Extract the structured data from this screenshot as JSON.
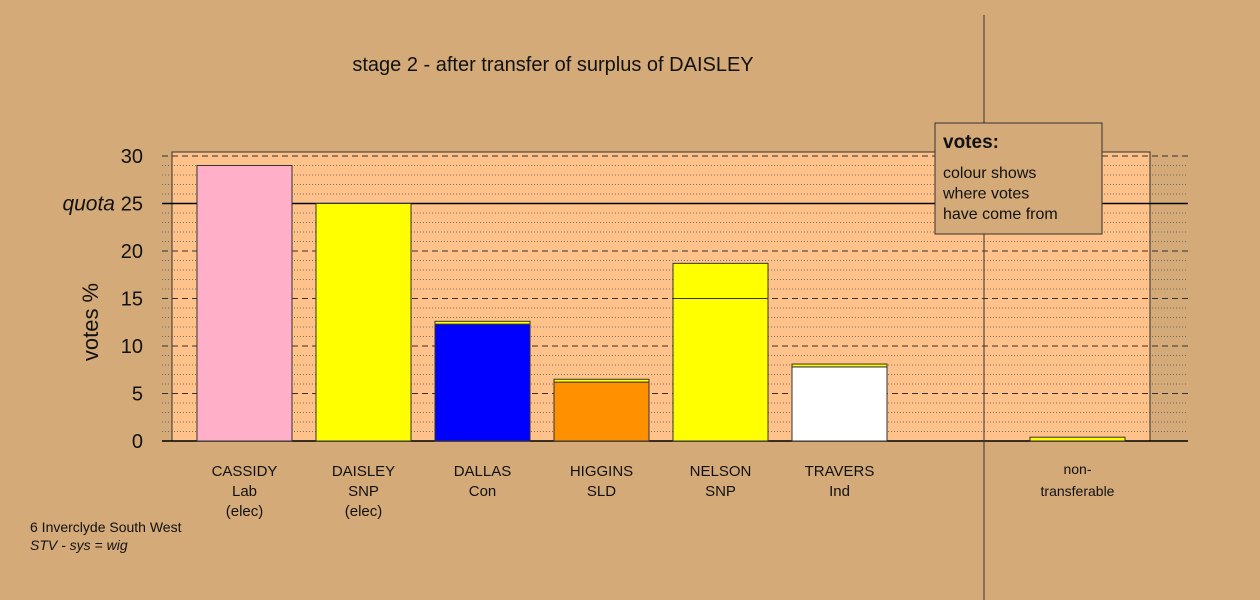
{
  "chart_data": {
    "type": "bar",
    "title": "stage 2 - after transfer of surplus of DAISLEY",
    "ylabel": "votes %",
    "quota_label": "quota",
    "quota": 25,
    "ylim": [
      0,
      30
    ],
    "yticks": [
      0,
      5,
      10,
      15,
      20,
      25,
      30
    ],
    "grid": true,
    "categories": [
      {
        "name": "CASSIDY",
        "party": "Lab",
        "status": "(elec)"
      },
      {
        "name": "DAISLEY",
        "party": "SNP",
        "status": "(elec)"
      },
      {
        "name": "DALLAS",
        "party": "Con",
        "status": ""
      },
      {
        "name": "HIGGINS",
        "party": "SLD",
        "status": ""
      },
      {
        "name": "NELSON",
        "party": "SNP",
        "status": ""
      },
      {
        "name": "TRAVERS",
        "party": "Ind",
        "status": ""
      }
    ],
    "non_transferable": {
      "label_line1": "non-",
      "label_line2": "transferable",
      "value": 0.4,
      "color": "#ffff00"
    },
    "bars": [
      {
        "segments": [
          {
            "value": 29.0,
            "color": "#ffb0c8"
          }
        ]
      },
      {
        "segments": [
          {
            "value": 25.0,
            "color": "#ffff00"
          }
        ]
      },
      {
        "segments": [
          {
            "value": 12.3,
            "color": "#0000ff"
          },
          {
            "value": 0.3,
            "color": "#ffff00"
          }
        ]
      },
      {
        "segments": [
          {
            "value": 6.2,
            "color": "#ff9000"
          },
          {
            "value": 0.3,
            "color": "#ffff00"
          }
        ]
      },
      {
        "segments": [
          {
            "value": 15.0,
            "color": "#ffff00"
          },
          {
            "value": 3.7,
            "color": "#ffff00"
          }
        ]
      },
      {
        "segments": [
          {
            "value": 7.8,
            "color": "#ffffff"
          },
          {
            "value": 0.3,
            "color": "#ffff00"
          }
        ]
      }
    ],
    "legend": {
      "title": "votes:",
      "lines": [
        "colour shows",
        "where votes",
        "have come from"
      ],
      "placement": "top-right"
    }
  },
  "footer": {
    "constituency": "6 Inverclyde South West",
    "system": "STV - sys = wig"
  },
  "colors": {
    "background": "#d4aa78",
    "plot_area": "#ffc28a",
    "legend_bg": "#d4aa78"
  }
}
